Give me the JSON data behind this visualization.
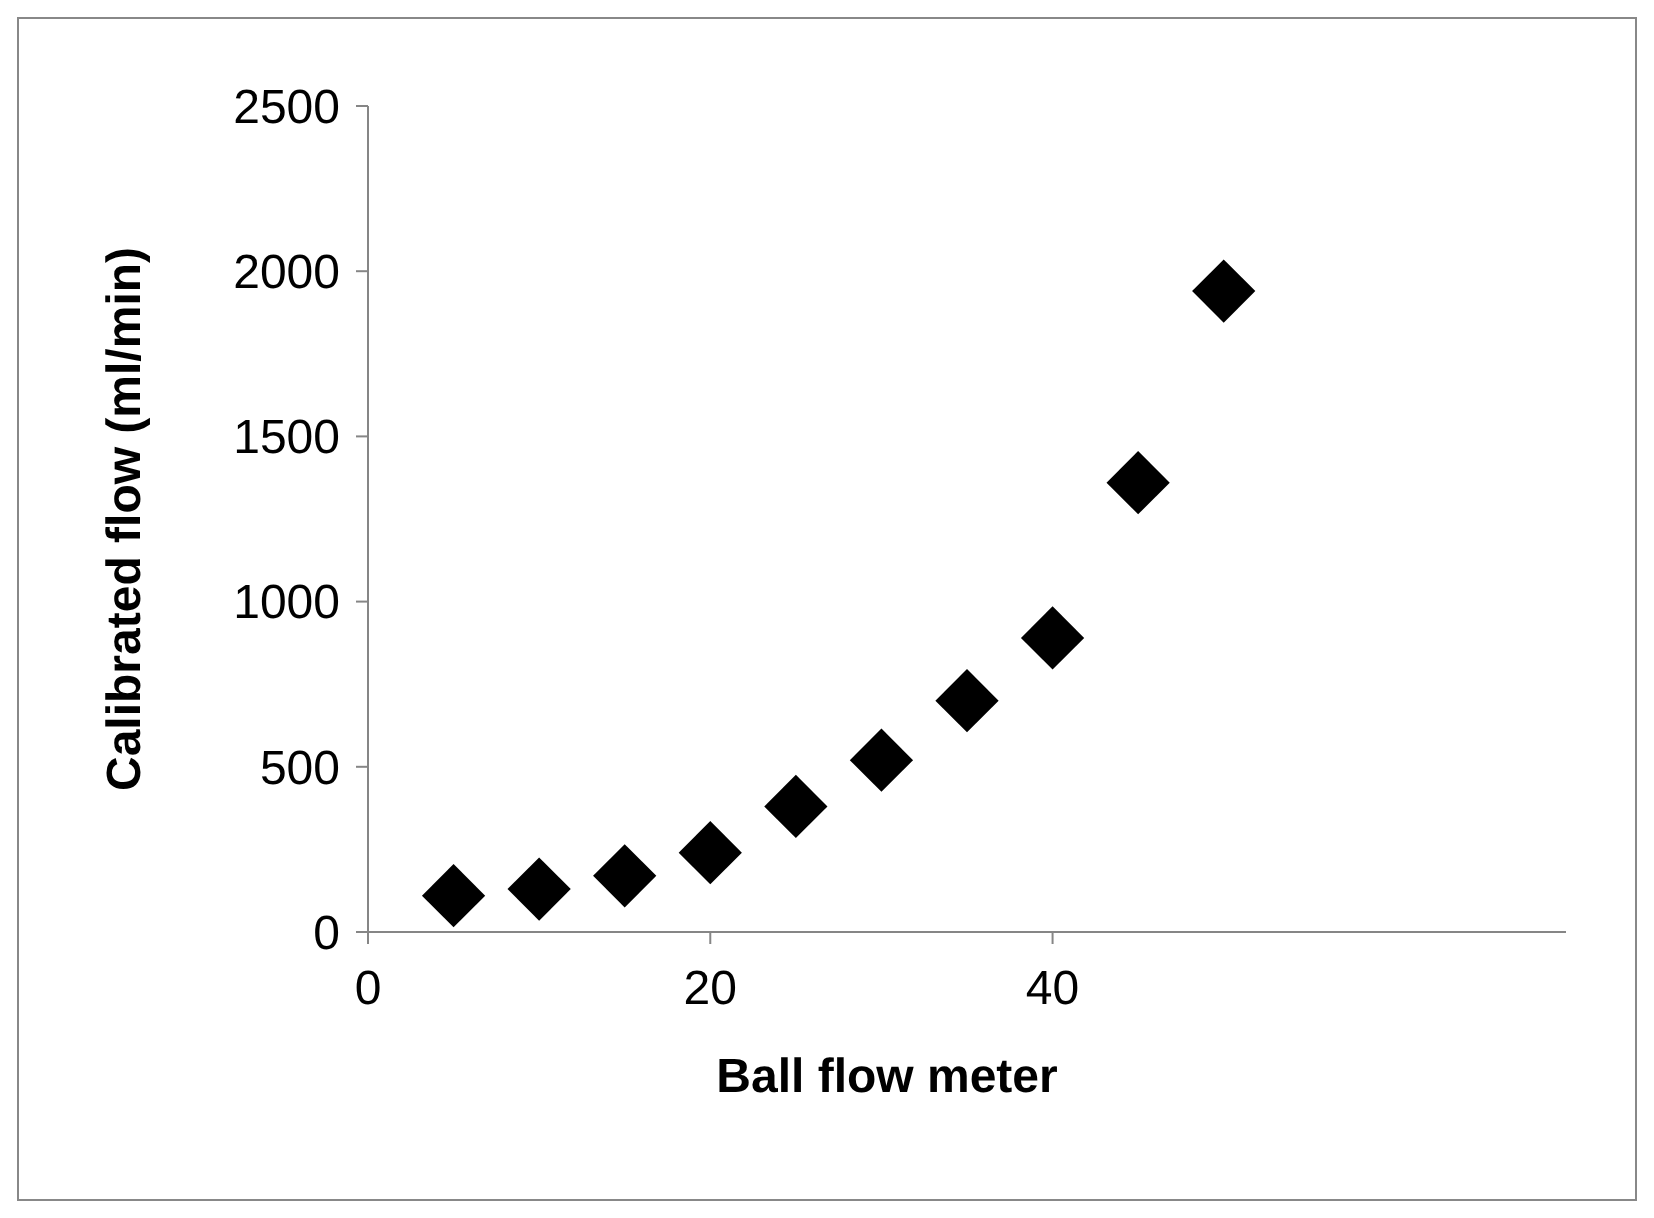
{
  "chart_data": {
    "type": "scatter",
    "xlabel": "Ball flow meter",
    "ylabel": "Calibrated flow (ml/min)",
    "x": [
      5,
      10,
      15,
      20,
      25,
      30,
      35,
      40,
      45,
      50
    ],
    "series": [
      {
        "color": "#000000",
        "values": [
          110,
          130,
          170,
          240,
          380,
          520,
          700,
          890,
          1360,
          1940
        ]
      }
    ],
    "xlim": [
      0,
      70
    ],
    "xticks": [
      0,
      20,
      40
    ],
    "ylim": [
      0,
      2500
    ],
    "yticks": [
      0,
      500,
      1000,
      1500,
      2000,
      2500
    ],
    "grid": false,
    "marker": "diamond"
  }
}
